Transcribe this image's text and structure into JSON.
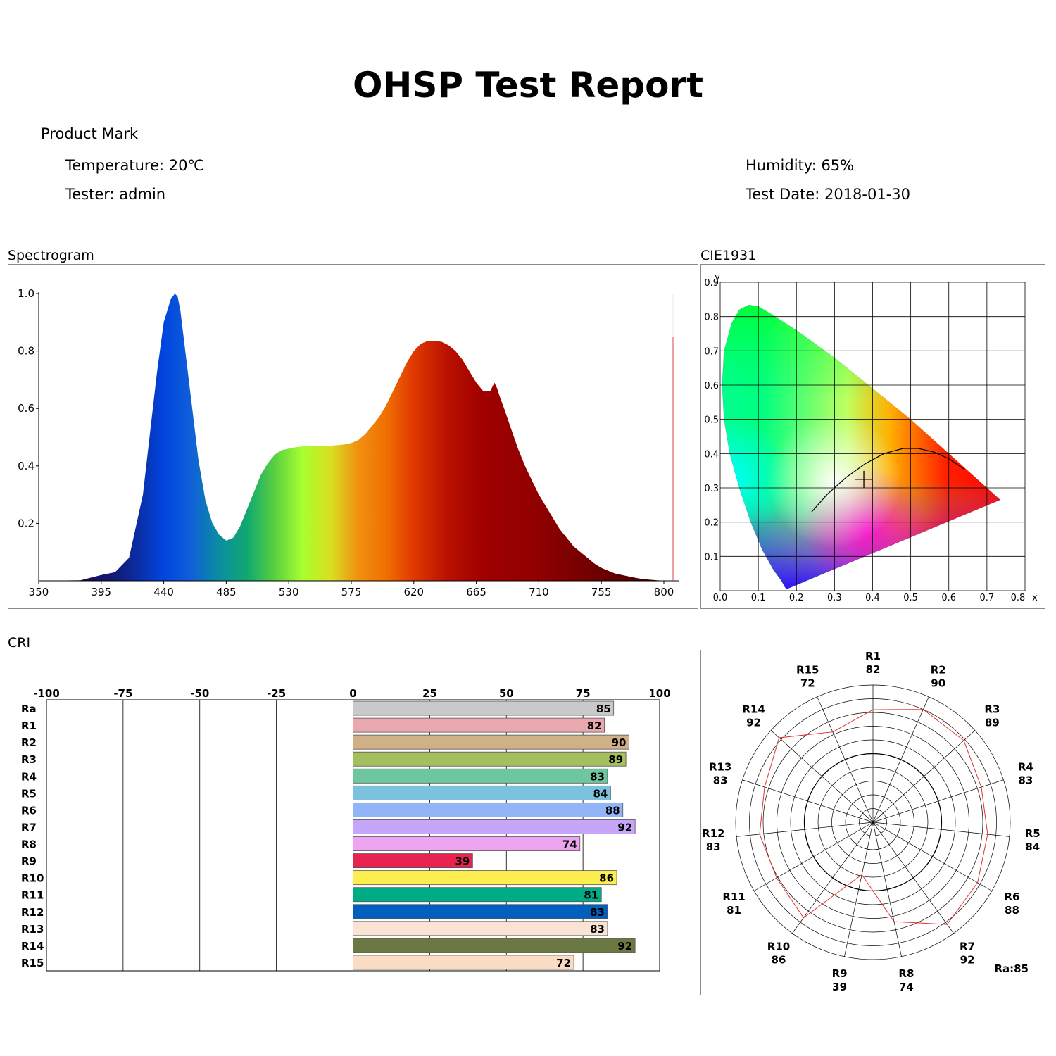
{
  "title": "OHSP Test Report",
  "product_mark": "Product Mark",
  "info": {
    "temperature": "Temperature: 20℃",
    "humidity": "Humidity: 65%",
    "tester": "Tester: admin",
    "test_date": "Test Date: 2018-01-30"
  },
  "sections": {
    "spectrogram": "Spectrogram",
    "cie": "CIE1931",
    "cri": "CRI"
  },
  "chart_data": [
    {
      "type": "area",
      "name": "Spectrogram",
      "x": [
        350,
        380,
        395,
        405,
        415,
        425,
        435,
        440,
        445,
        448,
        450,
        452,
        455,
        460,
        465,
        470,
        475,
        480,
        485,
        490,
        495,
        500,
        505,
        510,
        515,
        520,
        525,
        530,
        535,
        540,
        545,
        550,
        555,
        560,
        565,
        570,
        575,
        580,
        585,
        590,
        595,
        600,
        605,
        610,
        615,
        620,
        625,
        630,
        635,
        640,
        645,
        650,
        655,
        660,
        665,
        670,
        675,
        678,
        680,
        682,
        685,
        690,
        695,
        700,
        705,
        710,
        715,
        720,
        725,
        730,
        735,
        740,
        745,
        750,
        755,
        760,
        765,
        770,
        775,
        780,
        785,
        790,
        795,
        800
      ],
      "y": [
        0,
        0.002,
        0.02,
        0.03,
        0.08,
        0.3,
        0.72,
        0.9,
        0.98,
        1.0,
        0.99,
        0.94,
        0.82,
        0.62,
        0.42,
        0.28,
        0.2,
        0.16,
        0.14,
        0.15,
        0.19,
        0.25,
        0.31,
        0.37,
        0.41,
        0.44,
        0.455,
        0.46,
        0.465,
        0.468,
        0.47,
        0.47,
        0.47,
        0.47,
        0.472,
        0.475,
        0.48,
        0.49,
        0.51,
        0.54,
        0.57,
        0.61,
        0.66,
        0.71,
        0.76,
        0.8,
        0.825,
        0.835,
        0.835,
        0.832,
        0.82,
        0.8,
        0.77,
        0.73,
        0.69,
        0.66,
        0.66,
        0.69,
        0.67,
        0.64,
        0.6,
        0.53,
        0.46,
        0.4,
        0.35,
        0.3,
        0.26,
        0.22,
        0.18,
        0.15,
        0.12,
        0.1,
        0.08,
        0.06,
        0.045,
        0.035,
        0.025,
        0.02,
        0.015,
        0.01,
        0.006,
        0.004,
        0.002,
        0
      ],
      "xticks": [
        "350",
        "395",
        "440",
        "485",
        "530",
        "575",
        "620",
        "665",
        "710",
        "755",
        "800"
      ],
      "yticks": [
        "0.2",
        "0.4",
        "0.6",
        "0.8",
        "1.0"
      ],
      "xlim": [
        350,
        810
      ],
      "ylim": [
        0,
        1.0
      ]
    },
    {
      "type": "scatter",
      "name": "CIE1931",
      "xlabel": "x",
      "ylabel": "y",
      "xticks": [
        "0.0",
        "0.1",
        "0.2",
        "0.3",
        "0.4",
        "0.5",
        "0.6",
        "0.7",
        "0.8"
      ],
      "yticks": [
        "0.1",
        "0.2",
        "0.3",
        "0.4",
        "0.5",
        "0.6",
        "0.7",
        "0.8",
        "0.9"
      ],
      "xlim": [
        0,
        0.8
      ],
      "ylim": [
        0,
        0.9
      ],
      "point": {
        "x": 0.377,
        "y": 0.325
      },
      "locus": [
        [
          0.175,
          0.005
        ],
        [
          0.17,
          0.01
        ],
        [
          0.16,
          0.03
        ],
        [
          0.14,
          0.06
        ],
        [
          0.11,
          0.12
        ],
        [
          0.08,
          0.2
        ],
        [
          0.05,
          0.3
        ],
        [
          0.025,
          0.4
        ],
        [
          0.01,
          0.5
        ],
        [
          0.005,
          0.6
        ],
        [
          0.01,
          0.7
        ],
        [
          0.03,
          0.78
        ],
        [
          0.05,
          0.82
        ],
        [
          0.075,
          0.834
        ],
        [
          0.1,
          0.83
        ],
        [
          0.13,
          0.81
        ],
        [
          0.2,
          0.76
        ],
        [
          0.3,
          0.68
        ],
        [
          0.4,
          0.59
        ],
        [
          0.5,
          0.5
        ],
        [
          0.6,
          0.4
        ],
        [
          0.7,
          0.3
        ],
        [
          0.735,
          0.265
        ]
      ],
      "planckian": [
        [
          0.24,
          0.23
        ],
        [
          0.28,
          0.28
        ],
        [
          0.33,
          0.33
        ],
        [
          0.38,
          0.37
        ],
        [
          0.43,
          0.4
        ],
        [
          0.48,
          0.415
        ],
        [
          0.52,
          0.415
        ],
        [
          0.56,
          0.405
        ],
        [
          0.6,
          0.385
        ],
        [
          0.64,
          0.355
        ]
      ]
    },
    {
      "type": "bar",
      "name": "CRI",
      "categories": [
        "Ra",
        "R1",
        "R2",
        "R3",
        "R4",
        "R5",
        "R6",
        "R7",
        "R8",
        "R9",
        "R10",
        "R11",
        "R12",
        "R13",
        "R14",
        "R15"
      ],
      "values": [
        85,
        82,
        90,
        89,
        83,
        84,
        88,
        92,
        74,
        39,
        86,
        81,
        83,
        83,
        92,
        72
      ],
      "colors": [
        "#c9c9c9",
        "#e9a8b0",
        "#d0b086",
        "#a5be5e",
        "#6ec69e",
        "#7cc2dc",
        "#92b5f8",
        "#c5a6f8",
        "#eca5ee",
        "#e8234f",
        "#fdee50",
        "#00ac86",
        "#0160bd",
        "#fbe3d3",
        "#6b7844",
        "#fadcc3"
      ],
      "xticks": [
        "-100",
        "-75",
        "-50",
        "-25",
        "0",
        "25",
        "50",
        "75",
        "100"
      ],
      "xlim": [
        -100,
        100
      ]
    },
    {
      "type": "radar",
      "name": "CRI polar",
      "labels": [
        "R1",
        "R2",
        "R3",
        "R4",
        "R5",
        "R6",
        "R7",
        "R8",
        "R9",
        "R10",
        "R11",
        "R12",
        "R13",
        "R14",
        "R15"
      ],
      "values": [
        82,
        90,
        89,
        83,
        84,
        88,
        92,
        74,
        39,
        86,
        81,
        83,
        83,
        92,
        72
      ],
      "rmax": 100,
      "ra_label": "Ra:85"
    }
  ]
}
